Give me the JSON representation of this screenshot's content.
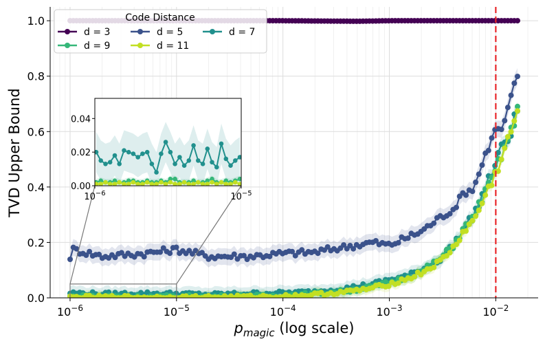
{
  "chart_data": {
    "type": "line",
    "title": "",
    "xlabel_main": "p",
    "xlabel_sub": "magic",
    "xlabel_suffix": " (log scale)",
    "ylabel": "TVD Upper Bound",
    "xscale": "log",
    "xlim": [
      6.5e-07,
      0.025
    ],
    "ylim": [
      0,
      1.05
    ],
    "x_ticks": [
      {
        "value": 1e-06,
        "base": "10",
        "exp": "−6"
      },
      {
        "value": 1e-05,
        "base": "10",
        "exp": "−5"
      },
      {
        "value": 0.0001,
        "base": "10",
        "exp": "−4"
      },
      {
        "value": 0.001,
        "base": "10",
        "exp": "−3"
      },
      {
        "value": 0.01,
        "base": "10",
        "exp": "−2"
      }
    ],
    "y_ticks": [
      {
        "value": 0.0,
        "label": "0.0"
      },
      {
        "value": 0.2,
        "label": "0.2"
      },
      {
        "value": 0.4,
        "label": "0.4"
      },
      {
        "value": 0.6,
        "label": "0.6"
      },
      {
        "value": 0.8,
        "label": "0.8"
      },
      {
        "value": 1.0,
        "label": "1.0"
      }
    ],
    "grid": true,
    "threshold_line": {
      "x": 0.01,
      "style": "dashed",
      "color": "#e8262a"
    },
    "legend": {
      "title": "Code Distance",
      "placement": "top-left",
      "columns": 3,
      "entries": [
        "d = 3",
        "d = 5",
        "d = 7",
        "d = 9",
        "d = 11"
      ]
    },
    "series": [
      {
        "name": "d = 3",
        "color": "#440154",
        "x": [
          1e-06,
          1e-05,
          0.0001,
          0.0005,
          0.001,
          0.005,
          0.01,
          0.016
        ],
        "values": [
          1.0,
          1.0,
          1.0,
          0.998,
          1.0,
          1.0,
          1.0,
          1.0
        ],
        "band": 0.0
      },
      {
        "name": "d = 5",
        "color": "#3b528b",
        "x": [
          1e-06,
          1.05e-06,
          2e-06,
          5e-06,
          1e-05,
          2e-05,
          5e-05,
          0.0001,
          0.0002,
          0.0004,
          0.0007,
          0.001,
          0.002,
          0.003,
          0.004,
          0.005,
          0.006,
          0.007,
          0.008,
          0.009,
          0.01,
          0.011,
          0.013,
          0.0145,
          0.016
        ],
        "values": [
          0.148,
          0.175,
          0.15,
          0.16,
          0.175,
          0.15,
          0.15,
          0.16,
          0.165,
          0.185,
          0.2,
          0.19,
          0.24,
          0.29,
          0.32,
          0.38,
          0.39,
          0.45,
          0.52,
          0.56,
          0.625,
          0.59,
          0.68,
          0.76,
          0.79
        ],
        "band": 0.03
      },
      {
        "name": "d = 7",
        "color": "#21908d",
        "x": [
          1e-06,
          2e-06,
          5e-06,
          1e-05,
          2e-05,
          5e-05,
          0.0001,
          0.0002,
          0.0004,
          0.0007,
          0.001,
          0.0015,
          0.002,
          0.003,
          0.004,
          0.005,
          0.006,
          0.007,
          0.008,
          0.009,
          0.01,
          0.012,
          0.014,
          0.016
        ],
        "values": [
          0.018,
          0.014,
          0.016,
          0.015,
          0.012,
          0.016,
          0.018,
          0.022,
          0.035,
          0.05,
          0.065,
          0.08,
          0.1,
          0.14,
          0.19,
          0.25,
          0.29,
          0.34,
          0.4,
          0.44,
          0.49,
          0.56,
          0.6,
          0.68
        ],
        "band": 0.025
      },
      {
        "name": "d = 9",
        "color": "#35b779",
        "x": [
          1e-06,
          2e-06,
          5e-06,
          1e-05,
          2e-05,
          5e-05,
          0.0001,
          0.0002,
          0.0004,
          0.0007,
          0.001,
          0.0015,
          0.002,
          0.003,
          0.004,
          0.005,
          0.006,
          0.007,
          0.008,
          0.009,
          0.01,
          0.012,
          0.014,
          0.016
        ],
        "values": [
          0.005,
          0.006,
          0.004,
          0.005,
          0.004,
          0.006,
          0.008,
          0.015,
          0.025,
          0.04,
          0.055,
          0.075,
          0.095,
          0.14,
          0.19,
          0.25,
          0.28,
          0.34,
          0.38,
          0.42,
          0.46,
          0.54,
          0.6,
          0.67
        ],
        "band": 0.02
      },
      {
        "name": "d = 11",
        "color": "#c2df23",
        "x": [
          1e-06,
          2e-06,
          5e-06,
          1e-05,
          2e-05,
          5e-05,
          0.0001,
          0.0002,
          0.0004,
          0.0007,
          0.001,
          0.0015,
          0.002,
          0.003,
          0.004,
          0.005,
          0.006,
          0.007,
          0.008,
          0.009,
          0.01,
          0.012,
          0.014,
          0.016
        ],
        "values": [
          0.002,
          0.003,
          0.002,
          0.002,
          0.003,
          0.004,
          0.006,
          0.012,
          0.022,
          0.035,
          0.05,
          0.07,
          0.09,
          0.13,
          0.18,
          0.24,
          0.27,
          0.32,
          0.37,
          0.41,
          0.45,
          0.53,
          0.6,
          0.68
        ],
        "band": 0.02
      }
    ],
    "inset": {
      "xlim": [
        1e-06,
        1e-05
      ],
      "ylim": [
        0,
        0.052
      ],
      "x_ticks": [
        {
          "value": 1e-06,
          "base": "10",
          "exp": "−6"
        },
        {
          "value": 1e-05,
          "base": "10",
          "exp": "−5"
        }
      ],
      "y_ticks": [
        {
          "value": 0.0,
          "label": "0.00"
        },
        {
          "value": 0.02,
          "label": "0.02"
        },
        {
          "value": 0.04,
          "label": "0.04"
        }
      ],
      "zoom_box": {
        "x": [
          1e-06,
          1e-05
        ],
        "y": [
          0,
          0.05
        ]
      },
      "series": [
        {
          "name": "d = 7",
          "color": "#21908d",
          "values": [
            0.02,
            0.015,
            0.013,
            0.014,
            0.018,
            0.013,
            0.021,
            0.02,
            0.019,
            0.017,
            0.019,
            0.02,
            0.013,
            0.008,
            0.019,
            0.026,
            0.02,
            0.013,
            0.017,
            0.012,
            0.015,
            0.024,
            0.015,
            0.013,
            0.022,
            0.014,
            0.011,
            0.025,
            0.016,
            0.012,
            0.015,
            0.017
          ],
          "band": 0.012
        },
        {
          "name": "d = 9",
          "color": "#35b779",
          "values": [
            0.002,
            0.003,
            0.002,
            0.002,
            0.003,
            0.002,
            0.002,
            0.003,
            0.003,
            0.002,
            0.002,
            0.003,
            0.002,
            0.002,
            0.003,
            0.002,
            0.004,
            0.004,
            0.002,
            0.002,
            0.002,
            0.003,
            0.002,
            0.002,
            0.003,
            0.004,
            0.002,
            0.002,
            0.003,
            0.002,
            0.003,
            0.004
          ],
          "band": 0.002
        },
        {
          "name": "d = 11",
          "color": "#c2df23",
          "values": [
            0.001,
            0.001,
            0.002,
            0.001,
            0.001,
            0.002,
            0.001,
            0.001,
            0.002,
            0.001,
            0.001,
            0.002,
            0.001,
            0.001,
            0.002,
            0.001,
            0.002,
            0.001,
            0.001,
            0.002,
            0.001,
            0.001,
            0.002,
            0.001,
            0.001,
            0.002,
            0.001,
            0.002,
            0.001,
            0.001,
            0.002,
            0.001
          ],
          "band": 0.001
        }
      ]
    }
  }
}
